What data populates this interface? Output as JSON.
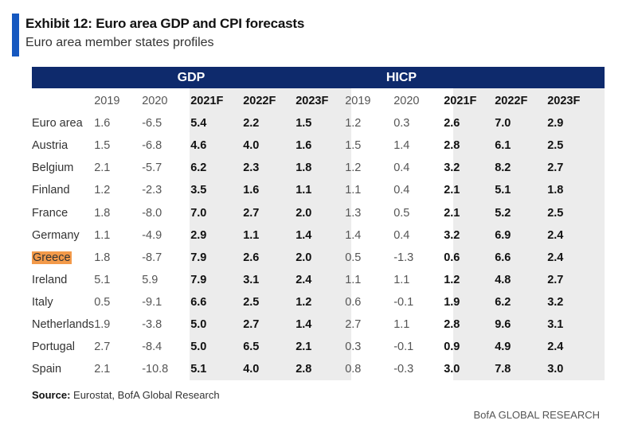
{
  "header": {
    "title": "Exhibit 12: Euro area GDP and CPI forecasts",
    "subtitle": "Euro area member states profiles"
  },
  "colors": {
    "accent": "#1558c0",
    "band": "#0e2a6c",
    "shade": "#ececec",
    "highlight": "#f39a4a"
  },
  "footer": {
    "source_label": "Source:",
    "source_text": " Eurostat, BofA Global Research",
    "brand": "BofA GLOBAL RESEARCH"
  },
  "chart_data": {
    "type": "table",
    "title": "Exhibit 12: Euro area GDP and CPI forecasts",
    "subtitle": "Euro area member states profiles",
    "groups": [
      "GDP",
      "HICP"
    ],
    "columns": [
      "2019",
      "2020",
      "2021F",
      "2022F",
      "2023F"
    ],
    "highlighted_row": "Greece",
    "rows": [
      {
        "name": "Euro area",
        "gdp": [
          "1.6",
          "-6.5",
          "5.4",
          "2.2",
          "1.5"
        ],
        "hicp": [
          "1.2",
          "0.3",
          "2.6",
          "7.0",
          "2.9"
        ]
      },
      {
        "name": "Austria",
        "gdp": [
          "1.5",
          "-6.8",
          "4.6",
          "4.0",
          "1.6"
        ],
        "hicp": [
          "1.5",
          "1.4",
          "2.8",
          "6.1",
          "2.5"
        ]
      },
      {
        "name": "Belgium",
        "gdp": [
          "2.1",
          "-5.7",
          "6.2",
          "2.3",
          "1.8"
        ],
        "hicp": [
          "1.2",
          "0.4",
          "3.2",
          "8.2",
          "2.7"
        ]
      },
      {
        "name": "Finland",
        "gdp": [
          "1.2",
          "-2.3",
          "3.5",
          "1.6",
          "1.1"
        ],
        "hicp": [
          "1.1",
          "0.4",
          "2.1",
          "5.1",
          "1.8"
        ]
      },
      {
        "name": "France",
        "gdp": [
          "1.8",
          "-8.0",
          "7.0",
          "2.7",
          "2.0"
        ],
        "hicp": [
          "1.3",
          "0.5",
          "2.1",
          "5.2",
          "2.5"
        ]
      },
      {
        "name": "Germany",
        "gdp": [
          "1.1",
          "-4.9",
          "2.9",
          "1.1",
          "1.4"
        ],
        "hicp": [
          "1.4",
          "0.4",
          "3.2",
          "6.9",
          "2.4"
        ]
      },
      {
        "name": "Greece",
        "gdp": [
          "1.8",
          "-8.7",
          "7.9",
          "2.6",
          "2.0"
        ],
        "hicp": [
          "0.5",
          "-1.3",
          "0.6",
          "6.6",
          "2.4"
        ]
      },
      {
        "name": "Ireland",
        "gdp": [
          "5.1",
          "5.9",
          "7.9",
          "3.1",
          "2.4"
        ],
        "hicp": [
          "1.1",
          "1.1",
          "1.2",
          "4.8",
          "2.7"
        ]
      },
      {
        "name": "Italy",
        "gdp": [
          "0.5",
          "-9.1",
          "6.6",
          "2.5",
          "1.2"
        ],
        "hicp": [
          "0.6",
          "-0.1",
          "1.9",
          "6.2",
          "3.2"
        ]
      },
      {
        "name": "Netherlands",
        "gdp": [
          "1.9",
          "-3.8",
          "5.0",
          "2.7",
          "1.4"
        ],
        "hicp": [
          "2.7",
          "1.1",
          "2.8",
          "9.6",
          "3.1"
        ]
      },
      {
        "name": "Portugal",
        "gdp": [
          "2.7",
          "-8.4",
          "5.0",
          "6.5",
          "2.1"
        ],
        "hicp": [
          "0.3",
          "-0.1",
          "0.9",
          "4.9",
          "2.4"
        ]
      },
      {
        "name": "Spain",
        "gdp": [
          "2.1",
          "-10.8",
          "5.1",
          "4.0",
          "2.8"
        ],
        "hicp": [
          "0.8",
          "-0.3",
          "3.0",
          "7.8",
          "3.0"
        ]
      }
    ]
  }
}
